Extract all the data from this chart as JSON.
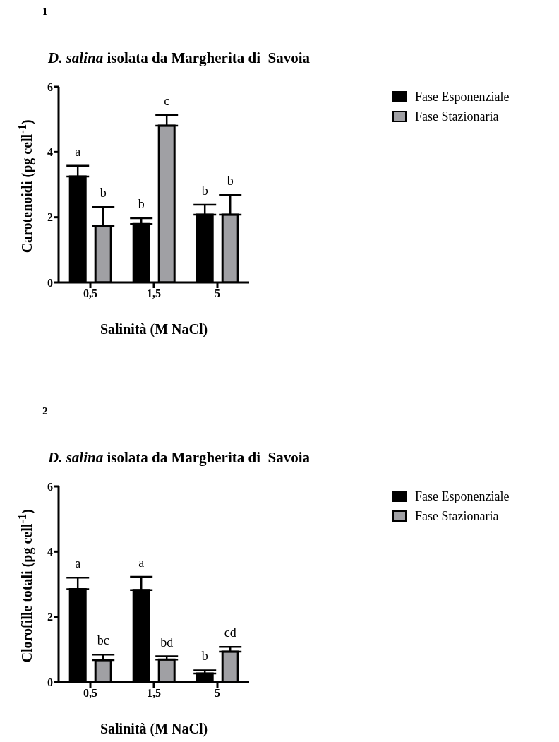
{
  "chart_data": [
    {
      "type": "bar",
      "title": "D. salina isolata da Margherita di  Savoia",
      "xlabel": "Salinità (M NaCl)",
      "ylabel": "Carotenoidi (pg cell$^{-1}$)",
      "categories": [
        "0,5",
        "1,5",
        "5"
      ],
      "series": [
        {
          "name": "Fase Esponenziale",
          "color": "#000000",
          "values": [
            3.25,
            1.79,
            2.08
          ],
          "errors": [
            0.33,
            0.18,
            0.3
          ]
        },
        {
          "name": "Fase Stazionaria",
          "color": "#a0a0a4",
          "values": [
            1.74,
            4.81,
            2.08
          ],
          "errors": [
            0.57,
            0.32,
            0.6
          ]
        }
      ],
      "ylim": [
        0,
        6
      ],
      "yticks": [
        0,
        2,
        4,
        6
      ],
      "grid": false,
      "legend": "top right",
      "annotations": [
        "1",
        {
          "text": "a",
          "x": "0,5",
          "y": 3.58
        },
        {
          "text": "b",
          "x": "0,5",
          "y": 2.31
        },
        {
          "text": "b",
          "x": "1,5",
          "y": 1.97
        },
        {
          "text": "c",
          "x": "1,5",
          "y": 5.13
        },
        {
          "text": "b",
          "x": "5",
          "y": 2.38
        },
        {
          "text": "b",
          "x": "5",
          "y": 2.68
        }
      ]
    },
    {
      "type": "bar",
      "title": "D. salina isolata da Margherita di  Savoia",
      "xlabel": "Salinità (M NaCl)",
      "ylabel": "Clorofille totali (pg cell$^{-1}$)",
      "categories": [
        "0,5",
        "1,5",
        "5"
      ],
      "series": [
        {
          "name": "Fase Esponenziale",
          "color": "#000000",
          "values": [
            2.85,
            2.82,
            0.26
          ],
          "errors": [
            0.35,
            0.41,
            0.1
          ]
        },
        {
          "name": "Fase Stazionaria",
          "color": "#a0a0a4",
          "values": [
            0.67,
            0.69,
            0.93
          ],
          "errors": [
            0.17,
            0.1,
            0.15
          ]
        }
      ],
      "ylim": [
        0,
        6
      ],
      "yticks": [
        0,
        2,
        4,
        6
      ],
      "grid": false,
      "legend": "top right",
      "annotations": [
        "2",
        {
          "text": "a",
          "x": "0,5",
          "y": 3.2
        },
        {
          "text": "bc",
          "x": "0,5",
          "y": 0.84
        },
        {
          "text": "a",
          "x": "1,5",
          "y": 3.23
        },
        {
          "text": "bd",
          "x": "1,5",
          "y": 0.79
        },
        {
          "text": "b",
          "x": "5",
          "y": 0.36
        },
        {
          "text": "cd",
          "x": "5",
          "y": 1.08
        }
      ]
    }
  ]
}
